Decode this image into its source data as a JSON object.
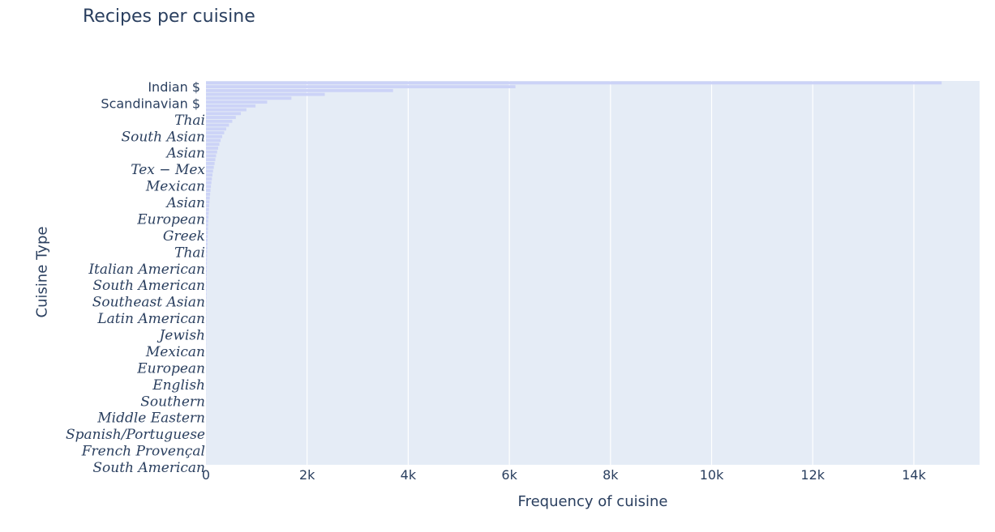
{
  "title": "Recipes per cuisine",
  "chart_data": {
    "type": "bar",
    "orientation": "horizontal",
    "title": "Recipes per cuisine",
    "xlabel": "Frequency of cuisine",
    "ylabel": "Cuisine Type",
    "xlim": [
      0,
      15300
    ],
    "x_ticks": [
      "0",
      "2k",
      "4k",
      "6k",
      "8k",
      "10k",
      "12k",
      "14k"
    ],
    "x_tick_values": [
      0,
      2000,
      4000,
      6000,
      8000,
      10000,
      12000,
      14000
    ],
    "grid": true,
    "bar_color": "#ccd3f7",
    "plot_bg": "#e5ecf6",
    "y_tick_labels": [
      "Indian $",
      "Scandinavian $",
      "Thai",
      "South Asian",
      "Asian",
      "Tex − Mex",
      "Mexican",
      "Asian",
      "European",
      "Greek",
      "Thai",
      "Italian American",
      "South American",
      "Southeast Asian",
      "Latin American",
      "Jewish",
      "Mexican",
      "European",
      "English",
      "Southern",
      "Middle Eastern",
      "Spanish/Portuguese",
      "French Provençal",
      "South American"
    ],
    "y_tick_plain": [
      true,
      true,
      false,
      false,
      false,
      false,
      false,
      false,
      false,
      false,
      false,
      false,
      false,
      false,
      false,
      false,
      false,
      false,
      false,
      false,
      false,
      false,
      false,
      false
    ],
    "values": [
      14550,
      6120,
      3700,
      2350,
      1690,
      1210,
      980,
      800,
      690,
      590,
      520,
      455,
      400,
      360,
      320,
      290,
      265,
      240,
      220,
      200,
      185,
      170,
      155,
      140,
      128,
      117,
      107,
      98,
      90,
      82,
      75,
      69,
      63,
      58,
      53,
      49,
      45,
      42,
      39,
      36,
      33,
      31,
      29,
      27,
      25,
      23,
      21,
      19,
      18,
      17,
      16,
      15,
      14,
      13,
      12,
      11,
      10,
      10,
      9,
      9,
      8,
      8,
      7,
      7,
      6,
      6,
      5,
      5,
      5,
      4,
      4,
      4,
      3,
      3,
      3,
      3,
      2,
      2,
      2,
      2,
      2,
      2,
      1,
      1,
      1,
      1,
      1,
      1,
      1,
      1,
      1,
      1,
      1,
      1,
      1,
      1,
      1,
      1,
      1,
      1
    ]
  }
}
